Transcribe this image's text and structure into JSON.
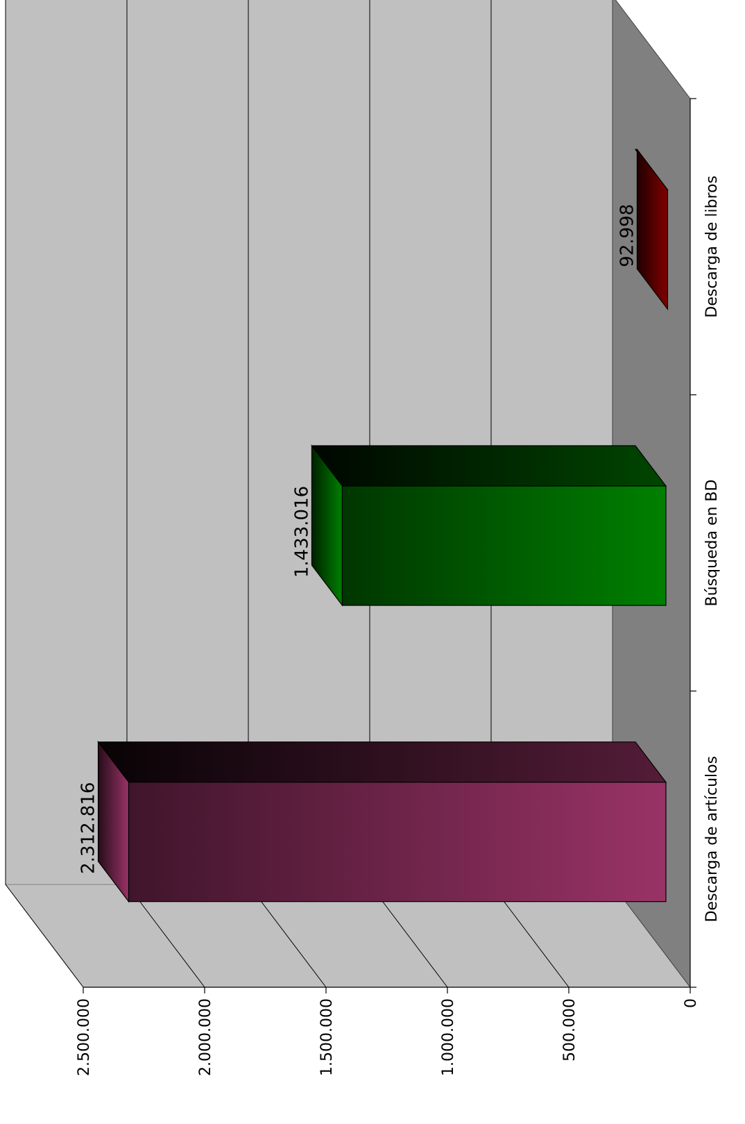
{
  "chart_data": {
    "type": "bar",
    "title": "",
    "xlabel": "",
    "ylabel": "",
    "categories": [
      "Descarga de artículos",
      "Búsqueda en BD",
      "Descarga de libros"
    ],
    "values": [
      2312816,
      1433016,
      92998
    ],
    "value_labels": [
      "2.312.816",
      "1.433.016",
      "92.998"
    ],
    "ylim": [
      0,
      2500000
    ],
    "yticks": [
      0,
      500000,
      1000000,
      1500000,
      2000000,
      2500000
    ],
    "ytick_labels": [
      "0",
      "500.000",
      "1.000.000",
      "1.500.000",
      "2.000.000",
      "2.500.000"
    ],
    "grid": true,
    "legend": "none",
    "orientation": "rotated 90° clockwise, 3D column chart",
    "colors": {
      "bars": [
        "#993366",
        "#008000",
        "#800000"
      ],
      "back_wall": "#c0c0c0",
      "side_wall": "#c0c0c0",
      "floor": "#808080",
      "grid": "#000000"
    }
  }
}
